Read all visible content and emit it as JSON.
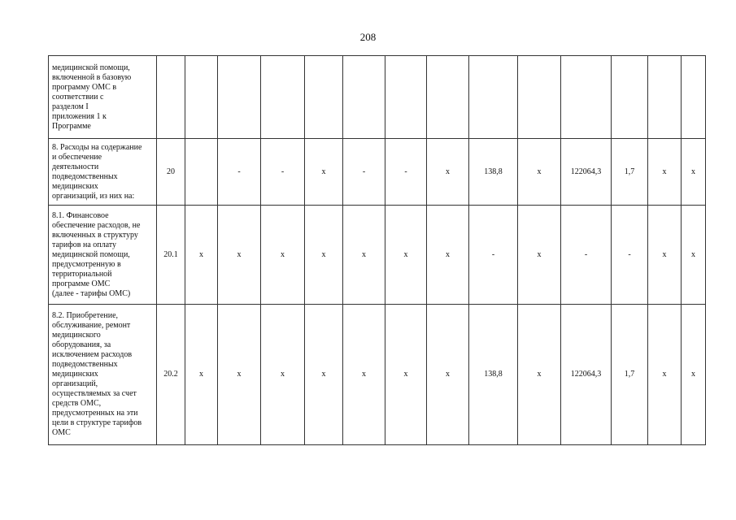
{
  "page_number": "208",
  "rows": [
    {
      "label": "медицинской помощи,\nвключенной в базовую\nпрограмму ОМС в\nсоответствии с\nразделом I\nприложения 1 к\nПрограмме",
      "cells": [
        "",
        "",
        "",
        "",
        "",
        "",
        "",
        "",
        "",
        "",
        "",
        "",
        "",
        ""
      ]
    },
    {
      "label": "8. Расходы на содержание\nи обеспечение\nдеятельности\nподведомственных\nмедицинских\nорганизаций, из них на:",
      "cells": [
        "20",
        "",
        "-",
        "-",
        "x",
        "-",
        "-",
        "x",
        "138,8",
        "x",
        "122064,3",
        "1,7",
        "x",
        "x"
      ]
    },
    {
      "label": "8.1. Финансовое\nобеспечение расходов, не\nвключенных в структуру\nтарифов на оплату\nмедицинской помощи,\nпредусмотренную в\nтерриториальной\nпрограмме ОМС\n(далее - тарифы ОМС)",
      "cells": [
        "20.1",
        "x",
        "x",
        "x",
        "x",
        "x",
        "x",
        "x",
        "-",
        "x",
        "-",
        "-",
        "x",
        "x"
      ]
    },
    {
      "label": "8.2. Приобретение,\nобслуживание, ремонт\nмедицинского\nоборудования, за\nисключением расходов\nподведомственных\nмедицинских\nорганизаций,\nосуществляемых за счет\nсредств ОМС,\nпредусмотренных на эти\nцели в структуре тарифов\nОМС",
      "cells": [
        "20.2",
        "x",
        "x",
        "x",
        "x",
        "x",
        "x",
        "x",
        "138,8",
        "x",
        "122064,3",
        "1,7",
        "x",
        "x"
      ]
    }
  ]
}
